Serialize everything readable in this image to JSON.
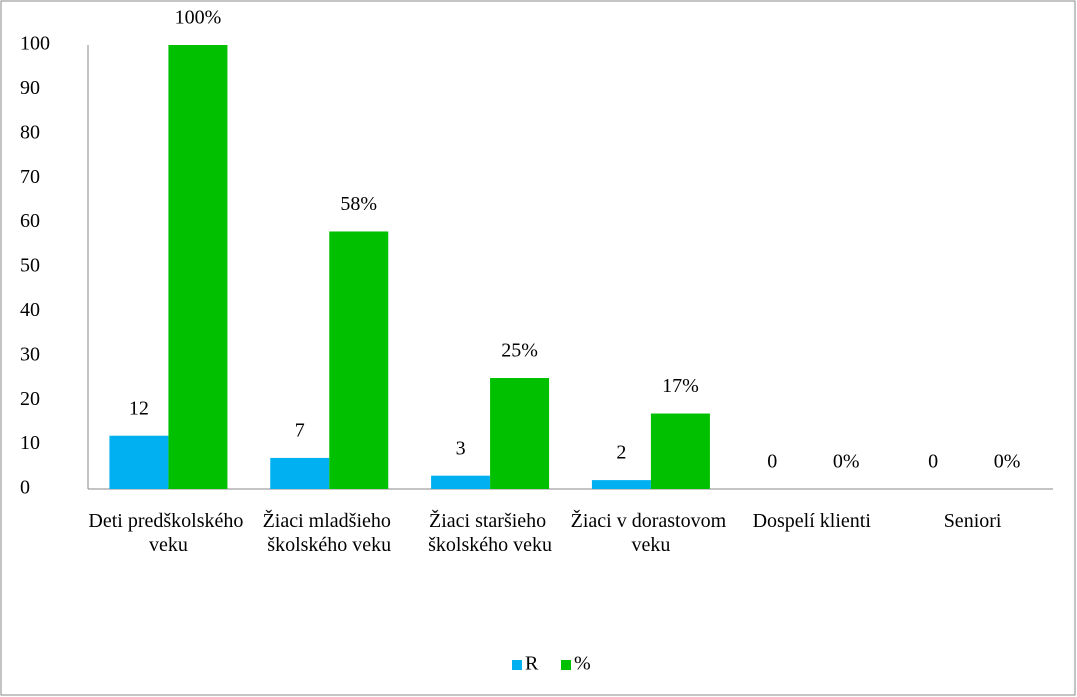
{
  "chart_data": {
    "type": "bar",
    "categories": [
      "Deti predškolského veku",
      "Žiaci mladšieho školského veku",
      "Žiaci staršieho školského veku",
      "Žiaci v dorastovom veku",
      "Dospelí klienti",
      "Seniori"
    ],
    "series": [
      {
        "name": "R",
        "color": "#00b0f0",
        "values": [
          12,
          7,
          3,
          2,
          0,
          0
        ]
      },
      {
        "name": "%",
        "color": "#00c000",
        "values": [
          100,
          58,
          25,
          17,
          0,
          0
        ],
        "value_labels": [
          "100%",
          "58%",
          "25%",
          "17%",
          "0%",
          "0%"
        ]
      }
    ],
    "ylim": [
      0,
      100
    ],
    "yticks": [
      0,
      10,
      20,
      30,
      40,
      50,
      60,
      70,
      80,
      90,
      100
    ],
    "grid": false,
    "legend": "bottom"
  }
}
